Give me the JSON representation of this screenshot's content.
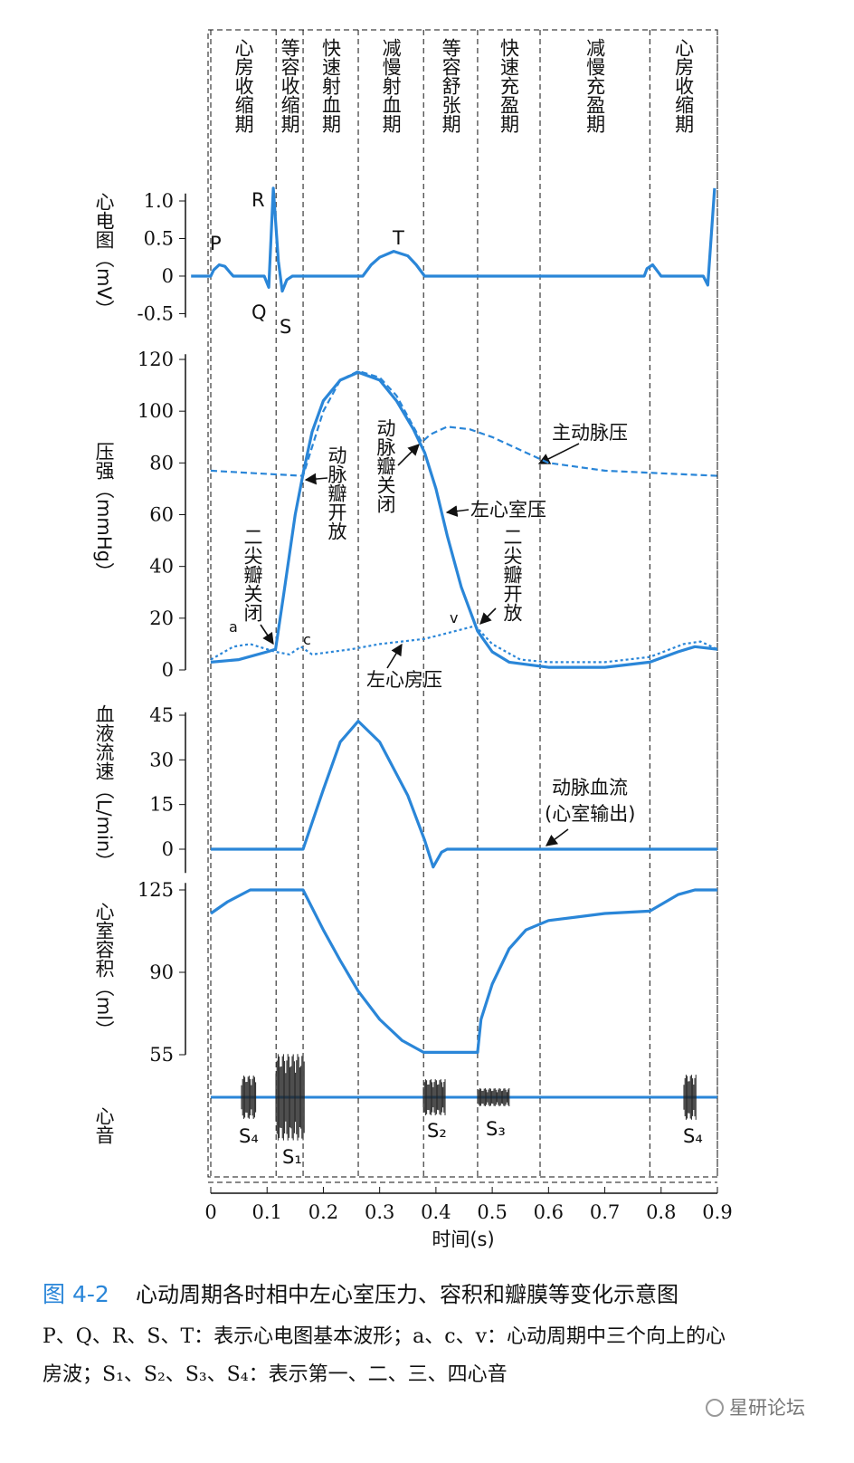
{
  "phases": {
    "labels": [
      "心房收缩期",
      "等容收缩期",
      "快速射血期",
      "减慢射血期",
      "等容舒张期",
      "快速充盈期",
      "减慢充盈期",
      "心房收缩期"
    ],
    "boundaries": [
      0,
      0.116,
      0.164,
      0.262,
      0.378,
      0.474,
      0.585,
      0.78,
      0.9
    ]
  },
  "x_axis": {
    "label": "时间(s)",
    "xlim": [
      0,
      0.9
    ],
    "xticks": [
      0,
      0.1,
      0.2,
      0.3,
      0.4,
      0.5,
      0.6,
      0.7,
      0.8,
      0.9
    ]
  },
  "chart_data": [
    {
      "type": "line",
      "y_label": "心电图（mV）",
      "ylim": [
        -0.55,
        1.1
      ],
      "yticks": [
        -0.5,
        0,
        0.5,
        {
          "value": 1,
          "label": "1.0"
        }
      ],
      "annotations": [
        "P",
        "Q",
        "R",
        "S",
        "T"
      ],
      "series": [
        {
          "color": "#2a86d8",
          "style": "solid",
          "x": [
            -0.035,
            0,
            0.005,
            0.015,
            0.025,
            0.035,
            0.04,
            0.095,
            0.103,
            0.111,
            0.12,
            0.127,
            0.135,
            0.145,
            0.27,
            0.285,
            0.3,
            0.325,
            0.35,
            0.365,
            0.38,
            0.77,
            0.775,
            0.785,
            0.795,
            0.8,
            0.875,
            0.883,
            0.895
          ],
          "values": [
            0,
            0,
            0.08,
            0.15,
            0.13,
            0.04,
            0,
            0,
            -0.15,
            1.17,
            0.2,
            -0.2,
            -0.05,
            0,
            0,
            0.15,
            0.25,
            0.33,
            0.27,
            0.15,
            0,
            0,
            0.1,
            0.15,
            0.05,
            0,
            0,
            -0.12,
            1.17
          ]
        }
      ]
    },
    {
      "type": "line",
      "y_label": "压强（mmHg）",
      "ylim": [
        0,
        122
      ],
      "yticks": [
        0,
        20,
        40,
        60,
        80,
        100,
        120
      ],
      "annotations": [
        "动脉瓣开放",
        "动脉瓣关闭",
        "二尖瓣关闭",
        "二尖瓣开放",
        "a",
        "c",
        "v"
      ],
      "series": [
        {
          "name": "主动脉压",
          "color": "#2a86d8",
          "style": "dashed",
          "x": [
            0,
            0.08,
            0.164,
            0.2,
            0.23,
            0.262,
            0.3,
            0.33,
            0.36,
            0.375,
            0.39,
            0.42,
            0.46,
            0.5,
            0.55,
            0.6,
            0.7,
            0.8,
            0.9
          ],
          "values": [
            77,
            76,
            75,
            100,
            112,
            115.5,
            113,
            106,
            94,
            88,
            91,
            94,
            93,
            90,
            85,
            80,
            77,
            76,
            75
          ]
        },
        {
          "name": "左心室压",
          "color": "#2a86d8",
          "style": "solid",
          "x": [
            0,
            0.05,
            0.1,
            0.115,
            0.13,
            0.15,
            0.165,
            0.18,
            0.2,
            0.23,
            0.262,
            0.3,
            0.33,
            0.36,
            0.38,
            0.4,
            0.42,
            0.445,
            0.474,
            0.5,
            0.53,
            0.6,
            0.7,
            0.78,
            0.83,
            0.86,
            0.9
          ],
          "values": [
            3,
            4,
            7,
            8,
            30,
            60,
            77,
            92,
            104,
            112,
            115,
            112,
            104,
            93,
            84,
            70,
            52,
            32,
            15,
            7,
            3,
            1,
            1,
            3,
            7,
            9,
            8
          ]
        },
        {
          "name": "左心房压",
          "color": "#2a86d8",
          "style": "dotted",
          "x": [
            0,
            0.04,
            0.07,
            0.115,
            0.14,
            0.16,
            0.18,
            0.25,
            0.3,
            0.38,
            0.47,
            0.5,
            0.55,
            0.6,
            0.7,
            0.78,
            0.84,
            0.87,
            0.9
          ],
          "values": [
            4,
            9,
            10,
            7,
            6,
            9,
            6,
            8,
            10,
            12,
            17,
            10,
            4,
            3,
            3,
            5,
            10,
            11,
            8
          ]
        }
      ]
    },
    {
      "type": "line",
      "y_label": "血液流速（L/min）",
      "ylim": [
        -8,
        46
      ],
      "yticks": [
        0,
        15,
        30,
        45
      ],
      "annotations": [
        "(心室输出)"
      ],
      "series": [
        {
          "name": "动脉血流",
          "color": "#2a86d8",
          "style": "solid",
          "x": [
            0,
            0.164,
            0.2,
            0.23,
            0.262,
            0.3,
            0.35,
            0.38,
            0.395,
            0.41,
            0.42,
            0.9
          ],
          "values": [
            0,
            0,
            20,
            36,
            43,
            36,
            18,
            3,
            -6,
            -1,
            0,
            0
          ]
        }
      ]
    },
    {
      "type": "line",
      "y_label": "心室容积（ml）",
      "ylim": [
        55,
        128
      ],
      "yticks": [
        55,
        90,
        125
      ],
      "series": [
        {
          "color": "#2a86d8",
          "style": "solid",
          "x": [
            0,
            0.03,
            0.07,
            0.164,
            0.2,
            0.23,
            0.262,
            0.3,
            0.34,
            0.378,
            0.474,
            0.48,
            0.5,
            0.53,
            0.56,
            0.6,
            0.7,
            0.78,
            0.83,
            0.86,
            0.9
          ],
          "values": [
            115,
            120,
            125,
            125,
            108,
            95,
            82,
            70,
            61,
            56,
            56,
            70,
            85,
            100,
            108,
            112,
            115,
            116,
            123,
            125,
            125
          ]
        }
      ]
    }
  ],
  "heart_sounds": {
    "label": "心音",
    "labels": [
      "S₄",
      "S₁",
      "S₂",
      "S₃",
      "S₄"
    ]
  },
  "caption": {
    "figure": "图 4-2",
    "title": "心动周期各时相中左心室压力、容积和瓣膜等变化示意图",
    "lines": [
      "P、Q、R、S、T：表示心电图基本波形；a、c、v：心动周期中三个向上的心",
      "房波；S₁、S₂、S₃、S₄：表示第一、二、三、四心音"
    ]
  },
  "watermark": "星研论坛"
}
